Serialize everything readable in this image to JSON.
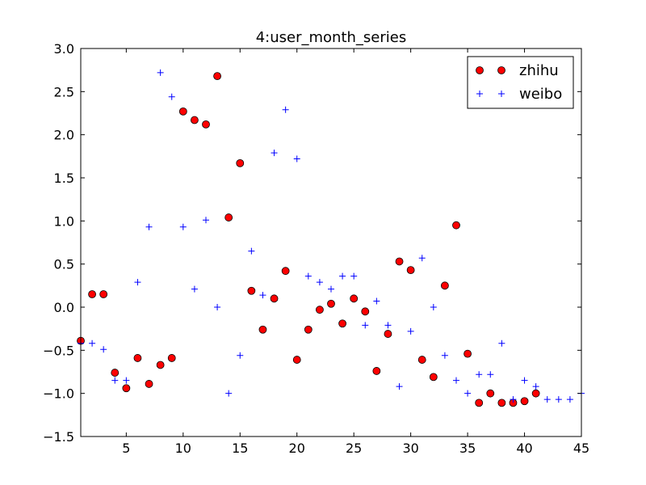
{
  "chart_data": {
    "type": "scatter",
    "title": "4:user_month_series",
    "xlabel": "",
    "ylabel": "",
    "xlim": [
      1,
      45
    ],
    "ylim": [
      -1.5,
      3.0
    ],
    "x_ticks": [
      5,
      10,
      15,
      20,
      25,
      30,
      35,
      40,
      45
    ],
    "y_ticks": [
      -1.5,
      -1.0,
      -0.5,
      0.0,
      0.5,
      1.0,
      1.5,
      2.0,
      2.5,
      3.0
    ],
    "x_tick_labels": [
      "5",
      "10",
      "15",
      "20",
      "25",
      "30",
      "35",
      "40",
      "45"
    ],
    "y_tick_labels": [
      "−1.5",
      "−1.0",
      "−0.5",
      "0.0",
      "0.5",
      "1.0",
      "1.5",
      "2.0",
      "2.5",
      "3.0"
    ],
    "grid": false,
    "legend_position": "top-right",
    "series": [
      {
        "name": "zhihu",
        "marker": "circle",
        "color": "#ff0000",
        "edge_color": "#000000",
        "points": [
          [
            1,
            -0.39
          ],
          [
            2,
            0.15
          ],
          [
            3,
            0.15
          ],
          [
            4,
            -0.76
          ],
          [
            5,
            -0.94
          ],
          [
            6,
            -0.59
          ],
          [
            7,
            -0.89
          ],
          [
            8,
            -0.67
          ],
          [
            9,
            -0.59
          ],
          [
            10,
            2.27
          ],
          [
            11,
            2.17
          ],
          [
            12,
            2.12
          ],
          [
            13,
            2.68
          ],
          [
            14,
            1.04
          ],
          [
            15,
            1.67
          ],
          [
            16,
            0.19
          ],
          [
            17,
            -0.26
          ],
          [
            18,
            0.1
          ],
          [
            19,
            0.42
          ],
          [
            20,
            -0.61
          ],
          [
            21,
            -0.26
          ],
          [
            22,
            -0.03
          ],
          [
            23,
            0.04
          ],
          [
            24,
            -0.19
          ],
          [
            25,
            0.1
          ],
          [
            26,
            -0.05
          ],
          [
            27,
            -0.74
          ],
          [
            28,
            -0.31
          ],
          [
            29,
            0.53
          ],
          [
            30,
            0.43
          ],
          [
            31,
            -0.61
          ],
          [
            32,
            -0.81
          ],
          [
            33,
            0.25
          ],
          [
            34,
            0.95
          ],
          [
            35,
            -0.54
          ],
          [
            36,
            -1.11
          ],
          [
            37,
            -1.0
          ],
          [
            38,
            -1.11
          ],
          [
            39,
            -1.11
          ],
          [
            40,
            -1.09
          ],
          [
            41,
            -1.0
          ]
        ]
      },
      {
        "name": "weibo",
        "marker": "plus",
        "color": "#0000ff",
        "points": [
          [
            1,
            -0.42
          ],
          [
            2,
            -0.42
          ],
          [
            3,
            -0.49
          ],
          [
            4,
            -0.85
          ],
          [
            5,
            -0.85
          ],
          [
            6,
            0.29
          ],
          [
            7,
            0.93
          ],
          [
            8,
            2.72
          ],
          [
            9,
            2.44
          ],
          [
            10,
            0.93
          ],
          [
            11,
            0.21
          ],
          [
            12,
            1.01
          ],
          [
            13,
            0.0
          ],
          [
            14,
            -1.0
          ],
          [
            15,
            -0.56
          ],
          [
            16,
            0.65
          ],
          [
            17,
            0.14
          ],
          [
            18,
            1.79
          ],
          [
            19,
            2.29
          ],
          [
            20,
            1.72
          ],
          [
            21,
            0.36
          ],
          [
            22,
            0.29
          ],
          [
            23,
            0.21
          ],
          [
            24,
            0.36
          ],
          [
            25,
            0.36
          ],
          [
            26,
            -0.21
          ],
          [
            27,
            0.07
          ],
          [
            28,
            -0.21
          ],
          [
            29,
            -0.92
          ],
          [
            30,
            -0.28
          ],
          [
            31,
            0.57
          ],
          [
            32,
            0.0
          ],
          [
            33,
            -0.56
          ],
          [
            34,
            -0.85
          ],
          [
            35,
            -1.0
          ],
          [
            36,
            -0.78
          ],
          [
            37,
            -0.78
          ],
          [
            38,
            -0.42
          ],
          [
            39,
            -1.07
          ],
          [
            40,
            -0.85
          ],
          [
            41,
            -0.92
          ],
          [
            42,
            -1.07
          ],
          [
            43,
            -1.07
          ],
          [
            44,
            -1.07
          ],
          [
            45,
            -1.0
          ]
        ]
      }
    ]
  }
}
